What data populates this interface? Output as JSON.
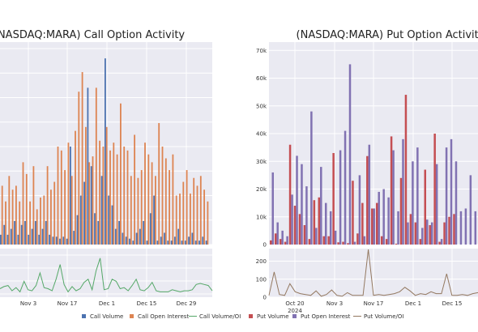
{
  "chart_data": [
    {
      "type": "bar",
      "title": "(NASDAQ:MARA) Call Option Activity",
      "x_tick_labels": [
        "Nov 3",
        "Nov 17",
        "Dec 1",
        "Dec 15",
        "Dec 29"
      ],
      "series": [
        {
          "name": "Call Volume",
          "color": "#4c72b0",
          "values": [
            5,
            10,
            5,
            8,
            12,
            5,
            10,
            12,
            5,
            8,
            12,
            5,
            8,
            12,
            5,
            4,
            4,
            3,
            4,
            3,
            50,
            7,
            15,
            25,
            32,
            80,
            40,
            16,
            12,
            35,
            95,
            25,
            20,
            8,
            12,
            6,
            4,
            3,
            2,
            6,
            8,
            12,
            2,
            16,
            25,
            2,
            4,
            6,
            2,
            2,
            4,
            8,
            2,
            2,
            4,
            6,
            2,
            2,
            4,
            2
          ]
        },
        {
          "name": "Call Open Interest",
          "color": "#dd8452",
          "values": [
            30,
            22,
            35,
            28,
            30,
            22,
            42,
            36,
            22,
            40,
            18,
            24,
            25,
            40,
            28,
            32,
            50,
            48,
            38,
            52,
            35,
            58,
            78,
            88,
            60,
            42,
            45,
            80,
            53,
            50,
            60,
            48,
            52,
            46,
            72,
            50,
            48,
            35,
            56,
            34,
            38,
            52,
            46,
            42,
            35,
            62,
            50,
            44,
            38,
            46,
            25,
            26,
            32,
            38,
            26,
            34,
            30,
            35,
            28,
            22
          ]
        },
        {
          "name": "Call Volume/OI",
          "color": "#55a868",
          "values": [
            5,
            7,
            8,
            3,
            6,
            2,
            12,
            4,
            3,
            8,
            20,
            6,
            5,
            3,
            14,
            28,
            9,
            2,
            7,
            3,
            5,
            11,
            14,
            4,
            22,
            34,
            4,
            5,
            14,
            12,
            5,
            6,
            3,
            8,
            14,
            4,
            3,
            6,
            11,
            3,
            2,
            2,
            2,
            4,
            3,
            2,
            3,
            3,
            4,
            9,
            10,
            9,
            8,
            3
          ]
        }
      ]
    },
    {
      "type": "bar",
      "title": "(NASDAQ:MARA) Put Option Activity",
      "y_tick_labels": [
        "0",
        "10k",
        "20k",
        "30k",
        "40k",
        "50k",
        "60k",
        "70k"
      ],
      "y2_tick_labels": [
        "0",
        "100",
        "200"
      ],
      "ylim": [
        0,
        73000
      ],
      "y2lim": [
        0,
        270
      ],
      "x_tick_labels": [
        "Oct 20\n2024",
        "Nov 3",
        "Nov 17",
        "Dec 1",
        "Dec 15"
      ],
      "series": [
        {
          "name": "Put Volume",
          "color": "#c44e52",
          "values": [
            1500,
            4000,
            2000,
            1000,
            36000,
            14000,
            11000,
            7000,
            2000,
            16000,
            17000,
            3000,
            3000,
            33000,
            800,
            1000,
            500,
            23000,
            4000,
            15000,
            31900,
            13000,
            15000,
            3000,
            2000,
            39000,
            300,
            24000,
            54000,
            11000,
            8000,
            2000,
            27000,
            7000,
            40000,
            1000,
            8000,
            10000,
            11000
          ]
        },
        {
          "name": "Put Open Interest",
          "color": "#8172b2",
          "values": [
            26000,
            8000,
            5000,
            3000,
            18000,
            32000,
            29000,
            21000,
            48000,
            6000,
            28000,
            15000,
            12000,
            5000,
            34000,
            41000,
            65000,
            1000,
            25000,
            3000,
            36000,
            13000,
            19000,
            20000,
            17000,
            34000,
            12000,
            38000,
            8000,
            30000,
            35000,
            6000,
            9000,
            8000,
            29000,
            2000,
            35000,
            38000,
            30000,
            12000,
            13000,
            25000,
            12000
          ]
        },
        {
          "name": "Put Volume/OI",
          "color": "#937860",
          "values": [
            10,
            140,
            15,
            10,
            75,
            30,
            20,
            15,
            10,
            35,
            5,
            15,
            40,
            10,
            5,
            25,
            10,
            10,
            10,
            265,
            10,
            15,
            10,
            15,
            20,
            30,
            55,
            35,
            10,
            20,
            15,
            30,
            20,
            20,
            130,
            10,
            10,
            15,
            10,
            20,
            25
          ]
        }
      ]
    }
  ],
  "legend": [
    {
      "name": "Call Volume",
      "kind": "box",
      "color": "#4c72b0"
    },
    {
      "name": "Call Open Interest",
      "kind": "box",
      "color": "#dd8452"
    },
    {
      "name": "Call Volume/OI",
      "kind": "line",
      "color": "#55a868"
    },
    {
      "name": "Put Volume",
      "kind": "box",
      "color": "#c44e52"
    },
    {
      "name": "Put Open Interest",
      "kind": "box",
      "color": "#8172b2"
    },
    {
      "name": "Put Volume/OI",
      "kind": "line",
      "color": "#937860"
    }
  ],
  "colors": {
    "panel_bg": "#eaeaf2",
    "grid": "#ffffff"
  }
}
